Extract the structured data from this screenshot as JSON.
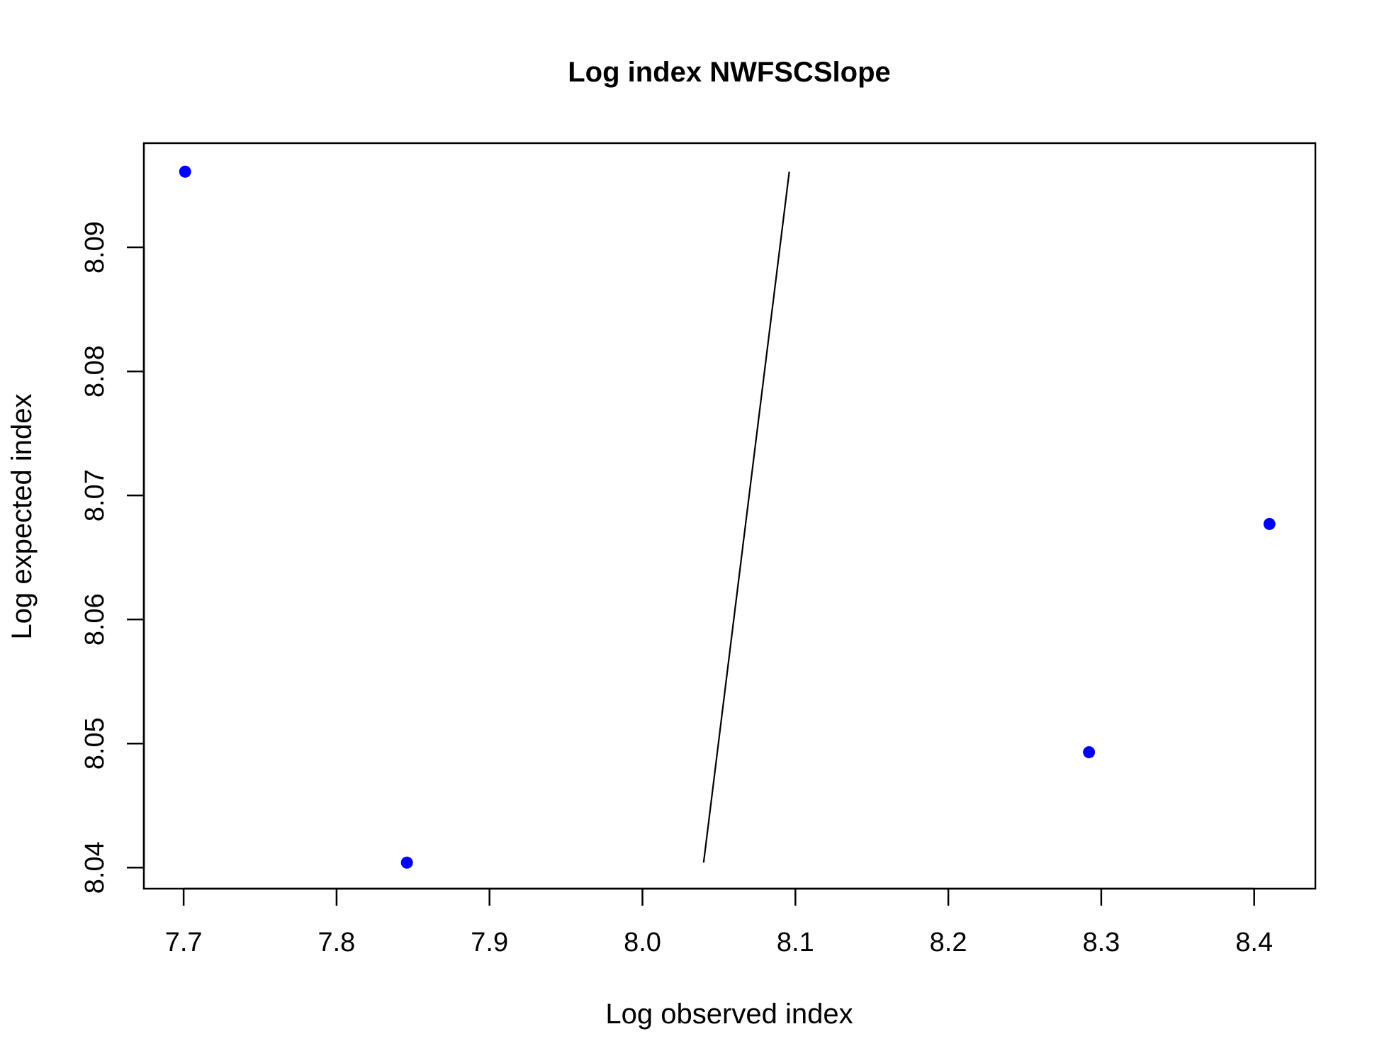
{
  "chart_data": {
    "type": "scatter",
    "title": "Log index NWFSCSlope",
    "xlabel": "Log observed index",
    "ylabel": "Log expected index",
    "xlim": [
      7.674,
      8.44
    ],
    "ylim": [
      8.0383,
      8.0984
    ],
    "xticks": [
      7.7,
      7.8,
      7.9,
      8.0,
      8.1,
      8.2,
      8.3,
      8.4
    ],
    "xtick_labels": [
      "7.7",
      "7.8",
      "7.9",
      "8.0",
      "8.1",
      "8.2",
      "8.3",
      "8.4"
    ],
    "yticks": [
      8.04,
      8.05,
      8.06,
      8.07,
      8.08,
      8.09
    ],
    "ytick_labels": [
      "8.04",
      "8.05",
      "8.06",
      "8.07",
      "8.08",
      "8.09"
    ],
    "grid": false,
    "series": [
      {
        "type": "scatter",
        "color": "#0000ff",
        "x": [
          7.701,
          7.846,
          8.292,
          8.41
        ],
        "y": [
          8.0961,
          8.0404,
          8.0493,
          8.0677
        ]
      },
      {
        "type": "line",
        "color": "#000000",
        "x": [
          8.04,
          8.096
        ],
        "y": [
          8.0404,
          8.0961
        ]
      }
    ]
  }
}
